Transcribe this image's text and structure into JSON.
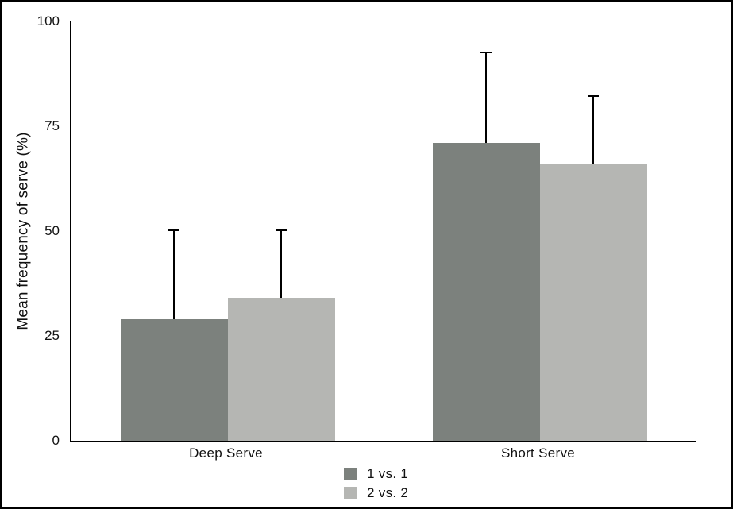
{
  "figure": {
    "background": "#ffffff",
    "frame_color": "#000000",
    "axis_color": "#000000"
  },
  "chart_data": {
    "type": "bar",
    "title": "",
    "xlabel": "",
    "ylabel": "Mean frequency of serve (%)",
    "categories": [
      "Deep Serve",
      "Short Serve"
    ],
    "series": [
      {
        "name": "1 vs. 1",
        "color": "#7c817d",
        "values": [
          29,
          71
        ],
        "errors_up": [
          21,
          21.5
        ]
      },
      {
        "name": "2 vs. 2",
        "color": "#b5b6b3",
        "values": [
          34,
          66
        ],
        "errors_up": [
          16,
          16
        ]
      }
    ],
    "ylim": [
      0,
      100
    ],
    "yticks": [
      0,
      25,
      50,
      75,
      100
    ],
    "grid": false,
    "error_bars": true,
    "legend_position": "bottom-center"
  }
}
